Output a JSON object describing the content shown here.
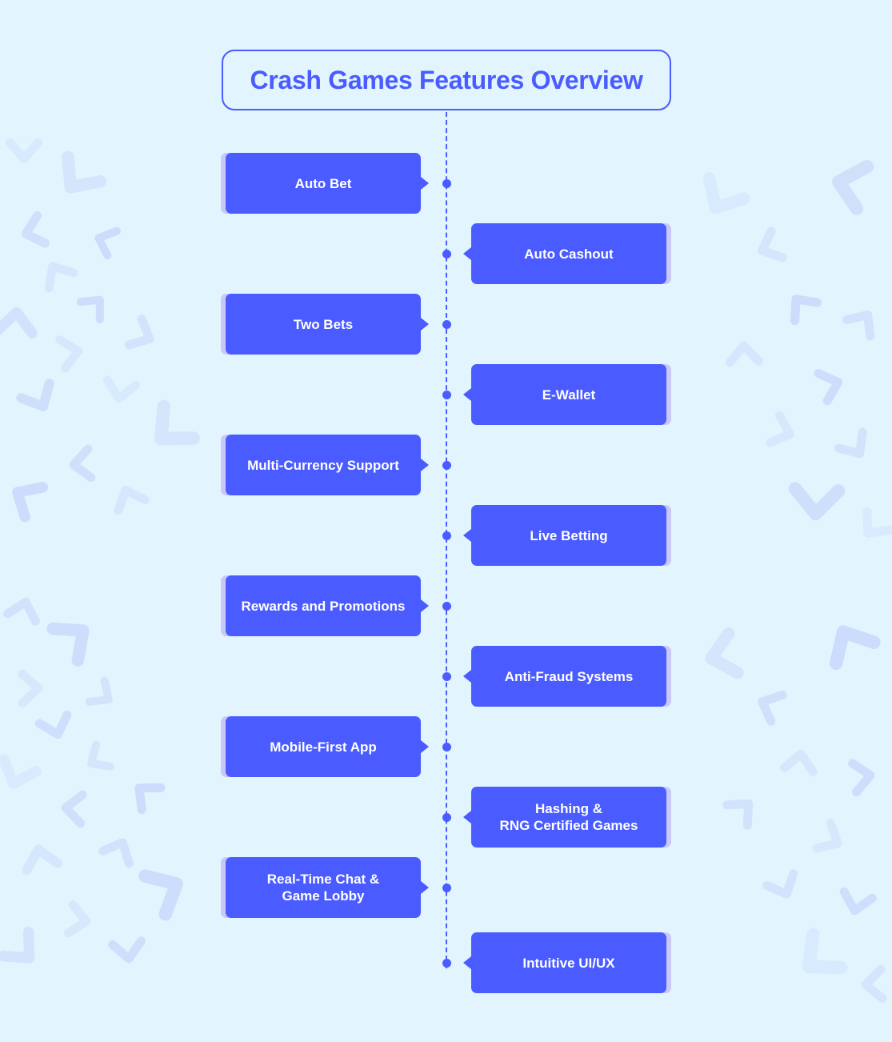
{
  "title": "Crash Games Features Overview",
  "colors": {
    "accent": "#4a5cff",
    "background": "#e2f4fd",
    "box_shadow": "#c9c8f8",
    "pattern": "#c6d6fb"
  },
  "features": [
    {
      "label": "Auto Bet",
      "side": "left"
    },
    {
      "label": "Auto Cashout",
      "side": "right"
    },
    {
      "label": "Two Bets",
      "side": "left"
    },
    {
      "label": "E-Wallet",
      "side": "right"
    },
    {
      "label": "Multi-Currency Support",
      "side": "left"
    },
    {
      "label": "Live Betting",
      "side": "right"
    },
    {
      "label": "Rewards and Promotions",
      "side": "left"
    },
    {
      "label": "Anti-Fraud Systems",
      "side": "right"
    },
    {
      "label": "Mobile-First App",
      "side": "left"
    },
    {
      "label": "Hashing &\nRNG Certified Games",
      "side": "right"
    },
    {
      "label": "Real-Time Chat &\nGame Lobby",
      "side": "left"
    },
    {
      "label": "Intuitive UI/UX",
      "side": "right"
    }
  ]
}
